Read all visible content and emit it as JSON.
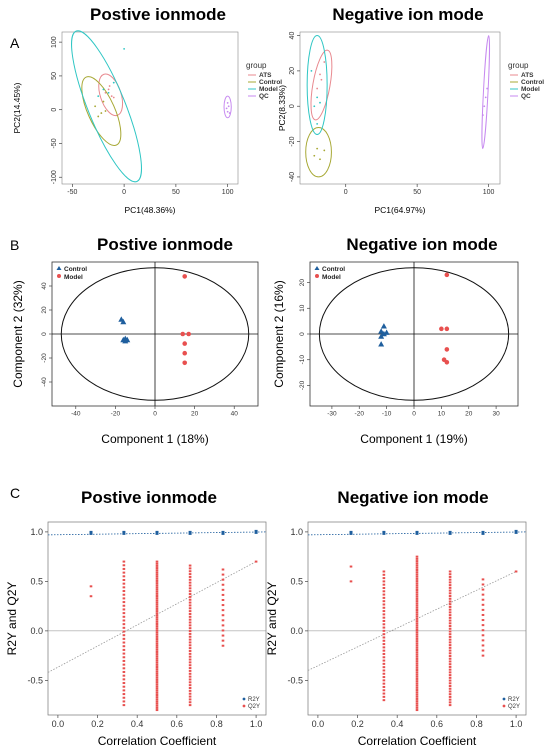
{
  "figure": {
    "panel_labels": [
      "A",
      "B",
      "C"
    ]
  },
  "colors": {
    "ATS": "#e8898f",
    "Control": "#a7a834",
    "Model": "#2fc6c4",
    "QC": "#c78af0",
    "plsda_control": "#1f5f9e",
    "plsda_model": "#e8504f",
    "r2y": "#1f5f9e",
    "q2y": "#e8504f"
  },
  "chart_data": [
    {
      "id": "A-pos",
      "type": "scatter",
      "title": "Postive ionmode",
      "xlabel": "PC1(48.36%)",
      "ylabel": "PC2(14.45%)",
      "xlim": [
        -60,
        110
      ],
      "ylim": [
        -110,
        115
      ],
      "xticks": [
        "-50",
        "0",
        "50",
        "100"
      ],
      "yticks": [
        "-100",
        "-50",
        "0",
        "50",
        "100"
      ],
      "legend": {
        "title": "group",
        "entries": [
          "ATS",
          "Control",
          "Model",
          "QC"
        ],
        "position": "right"
      },
      "series": [
        {
          "name": "ATS",
          "points": [
            [
              -15,
              30
            ],
            [
              -12,
              20
            ],
            [
              -10,
              18
            ],
            [
              -18,
              25
            ],
            [
              -14,
              35
            ]
          ],
          "ellipse": {
            "cx": -13,
            "cy": 22,
            "rx": 10,
            "ry": 32,
            "angle": -18
          }
        },
        {
          "name": "Control",
          "points": [
            [
              -22,
              -5
            ],
            [
              -25,
              -10
            ],
            [
              -18,
              -2
            ],
            [
              -28,
              5
            ],
            [
              -20,
              12
            ]
          ],
          "ellipse": {
            "cx": -22,
            "cy": -2,
            "rx": 13,
            "ry": 55,
            "angle": -24
          }
        },
        {
          "name": "Model",
          "points": [
            [
              -20,
              30
            ],
            [
              -15,
              25
            ],
            [
              -25,
              20
            ],
            [
              0,
              90
            ],
            [
              -10,
              40
            ]
          ],
          "ellipse": {
            "cx": -17,
            "cy": 5,
            "rx": 18,
            "ry": 120,
            "angle": -22
          }
        },
        {
          "name": "QC",
          "points": [
            [
              100,
              10
            ],
            [
              101,
              5
            ],
            [
              99,
              2
            ],
            [
              102,
              -5
            ],
            [
              100,
              -3
            ]
          ],
          "ellipse": {
            "cx": 100,
            "cy": 4,
            "rx": 3.5,
            "ry": 16,
            "angle": 0
          }
        }
      ]
    },
    {
      "id": "A-neg",
      "type": "scatter",
      "title": "Negative ion mode",
      "xlabel": "PC1(64.97%)",
      "ylabel": "PC2(8.33%)",
      "xlim": [
        -32,
        108
      ],
      "ylim": [
        -44,
        42
      ],
      "xticks": [
        "0",
        "50",
        "100"
      ],
      "yticks": [
        "-40",
        "-20",
        "0",
        "20",
        "40"
      ],
      "legend": {
        "title": "group",
        "entries": [
          "ATS",
          "Control",
          "Model",
          "QC"
        ],
        "position": "right"
      },
      "series": [
        {
          "name": "ATS",
          "points": [
            [
              -18,
              18
            ],
            [
              -15,
              25
            ],
            [
              -20,
              10
            ],
            [
              -17,
              15
            ]
          ],
          "ellipse": {
            "cx": -17,
            "cy": 12,
            "rx": 6,
            "ry": 20,
            "angle": 10
          }
        },
        {
          "name": "Control",
          "points": [
            [
              -22,
              -28
            ],
            [
              -18,
              -30
            ],
            [
              -15,
              -25
            ],
            [
              -20,
              -24
            ]
          ],
          "ellipse": {
            "cx": -19,
            "cy": -26,
            "rx": 9,
            "ry": 14,
            "angle": 0
          }
        },
        {
          "name": "Model",
          "points": [
            [
              -20,
              5
            ],
            [
              -22,
              0
            ],
            [
              -18,
              2
            ],
            [
              -20,
              -10
            ],
            [
              -24,
              20
            ]
          ],
          "ellipse": {
            "cx": -20,
            "cy": 12,
            "rx": 7,
            "ry": 28,
            "angle": 0
          }
        },
        {
          "name": "QC",
          "points": [
            [
              98,
              5
            ],
            [
              97,
              0
            ],
            [
              99,
              10
            ],
            [
              96,
              -5
            ]
          ],
          "ellipse": {
            "cx": 98,
            "cy": 8,
            "rx": 1.6,
            "ry": 32,
            "angle": 3
          }
        }
      ]
    },
    {
      "id": "B-pos",
      "type": "scatter",
      "title": "Postive ionmode",
      "xlabel": "Component 1 (18%)",
      "ylabel": "Component 2 (32%)",
      "xlim": [
        -52,
        52
      ],
      "ylim": [
        -60,
        60
      ],
      "xticks": [
        "-40",
        "-20",
        "0",
        "20",
        "40"
      ],
      "yticks": [
        "-40",
        "-20",
        "0",
        "20",
        "40"
      ],
      "legend": {
        "entries": [
          "Control",
          "Model"
        ],
        "position": "top-left"
      },
      "series": [
        {
          "name": "Control",
          "marker": "triangle",
          "points": [
            [
              -17,
              12
            ],
            [
              -16,
              10
            ],
            [
              -16,
              -5
            ],
            [
              -15,
              -6
            ],
            [
              -14,
              -5
            ],
            [
              -15,
              -4
            ]
          ]
        },
        {
          "name": "Model",
          "marker": "circle",
          "points": [
            [
              15,
              48
            ],
            [
              14,
              0
            ],
            [
              17,
              0
            ],
            [
              15,
              -8
            ],
            [
              15,
              -16
            ],
            [
              15,
              -24
            ]
          ]
        }
      ]
    },
    {
      "id": "B-neg",
      "type": "scatter",
      "title": "Negative ion mode",
      "xlabel": "Component 1 (19%)",
      "ylabel": "Component 2 (16%)",
      "xlim": [
        -38,
        38
      ],
      "ylim": [
        -28,
        28
      ],
      "xticks": [
        "-30",
        "-20",
        "-10",
        "0",
        "10",
        "20",
        "30"
      ],
      "yticks": [
        "-20",
        "-10",
        "0",
        "10",
        "20"
      ],
      "legend": {
        "entries": [
          "Control",
          "Model"
        ],
        "position": "top-left"
      },
      "series": [
        {
          "name": "Control",
          "marker": "triangle",
          "points": [
            [
              -11,
              3
            ],
            [
              -12,
              1
            ],
            [
              -11,
              0
            ],
            [
              -12,
              -1
            ],
            [
              -10,
              0.5
            ],
            [
              -12,
              -4
            ]
          ]
        },
        {
          "name": "Model",
          "marker": "circle",
          "points": [
            [
              12,
              23
            ],
            [
              10,
              2
            ],
            [
              12,
              2
            ],
            [
              12,
              -6
            ],
            [
              11,
              -10
            ],
            [
              12,
              -11
            ]
          ]
        }
      ]
    },
    {
      "id": "C-pos",
      "type": "scatter",
      "title": "Postive ionmode",
      "xlabel": "Correlation Coefficient",
      "ylabel": "R2Y and Q2Y",
      "xlim": [
        -0.05,
        1.05
      ],
      "ylim": [
        -0.85,
        1.1
      ],
      "xticks": [
        "0.0",
        "0.2",
        "0.4",
        "0.6",
        "0.8",
        "1.0"
      ],
      "yticks": [
        "-0.5",
        "0.0",
        "0.5",
        "1.0"
      ],
      "legend": {
        "entries": [
          "R2Y",
          "Q2Y"
        ],
        "position": "bottom-right"
      },
      "r2y_line": [
        0.97,
        1.0
      ],
      "q2y_line": [
        -0.42,
        0.7
      ],
      "series": [
        {
          "name": "R2Y",
          "points": [
            [
              0.167,
              0.99
            ],
            [
              0.333,
              0.99
            ],
            [
              0.5,
              0.99
            ],
            [
              0.667,
              0.99
            ],
            [
              0.833,
              0.99
            ],
            [
              1.0,
              1.0
            ]
          ]
        },
        {
          "name": "Q2Y",
          "columns": [
            {
              "x": 0.167,
              "ymin": 0.35,
              "ymax": 0.45,
              "n": 2
            },
            {
              "x": 0.333,
              "ymin": -0.75,
              "ymax": 0.7,
              "n": 40
            },
            {
              "x": 0.5,
              "ymin": -0.8,
              "ymax": 0.7,
              "n": 70
            },
            {
              "x": 0.667,
              "ymin": -0.75,
              "ymax": 0.66,
              "n": 50
            },
            {
              "x": 0.833,
              "ymin": -0.15,
              "ymax": 0.62,
              "n": 16
            },
            {
              "x": 1.0,
              "ymin": 0.7,
              "ymax": 0.7,
              "n": 1
            }
          ]
        }
      ]
    },
    {
      "id": "C-neg",
      "type": "scatter",
      "title": "Negative ion mode",
      "xlabel": "Correlation Coefficient",
      "ylabel": "R2Y and Q2Y",
      "xlim": [
        -0.05,
        1.05
      ],
      "ylim": [
        -0.85,
        1.1
      ],
      "xticks": [
        "0.0",
        "0.2",
        "0.4",
        "0.6",
        "0.8",
        "1.0"
      ],
      "yticks": [
        "-0.5",
        "0.0",
        "0.5",
        "1.0"
      ],
      "legend": {
        "entries": [
          "R2Y",
          "Q2Y"
        ],
        "position": "bottom-right"
      },
      "r2y_line": [
        0.97,
        1.0
      ],
      "q2y_line": [
        -0.4,
        0.6
      ],
      "series": [
        {
          "name": "R2Y",
          "points": [
            [
              0.167,
              0.99
            ],
            [
              0.333,
              0.99
            ],
            [
              0.5,
              0.99
            ],
            [
              0.667,
              0.99
            ],
            [
              0.833,
              0.99
            ],
            [
              1.0,
              1.0
            ]
          ]
        },
        {
          "name": "Q2Y",
          "columns": [
            {
              "x": 0.167,
              "ymin": 0.5,
              "ymax": 0.65,
              "n": 2
            },
            {
              "x": 0.333,
              "ymin": -0.7,
              "ymax": 0.6,
              "n": 40
            },
            {
              "x": 0.5,
              "ymin": -0.8,
              "ymax": 0.75,
              "n": 70
            },
            {
              "x": 0.667,
              "ymin": -0.75,
              "ymax": 0.6,
              "n": 50
            },
            {
              "x": 0.833,
              "ymin": -0.25,
              "ymax": 0.52,
              "n": 16
            },
            {
              "x": 1.0,
              "ymin": 0.6,
              "ymax": 0.6,
              "n": 1
            }
          ]
        }
      ]
    }
  ]
}
